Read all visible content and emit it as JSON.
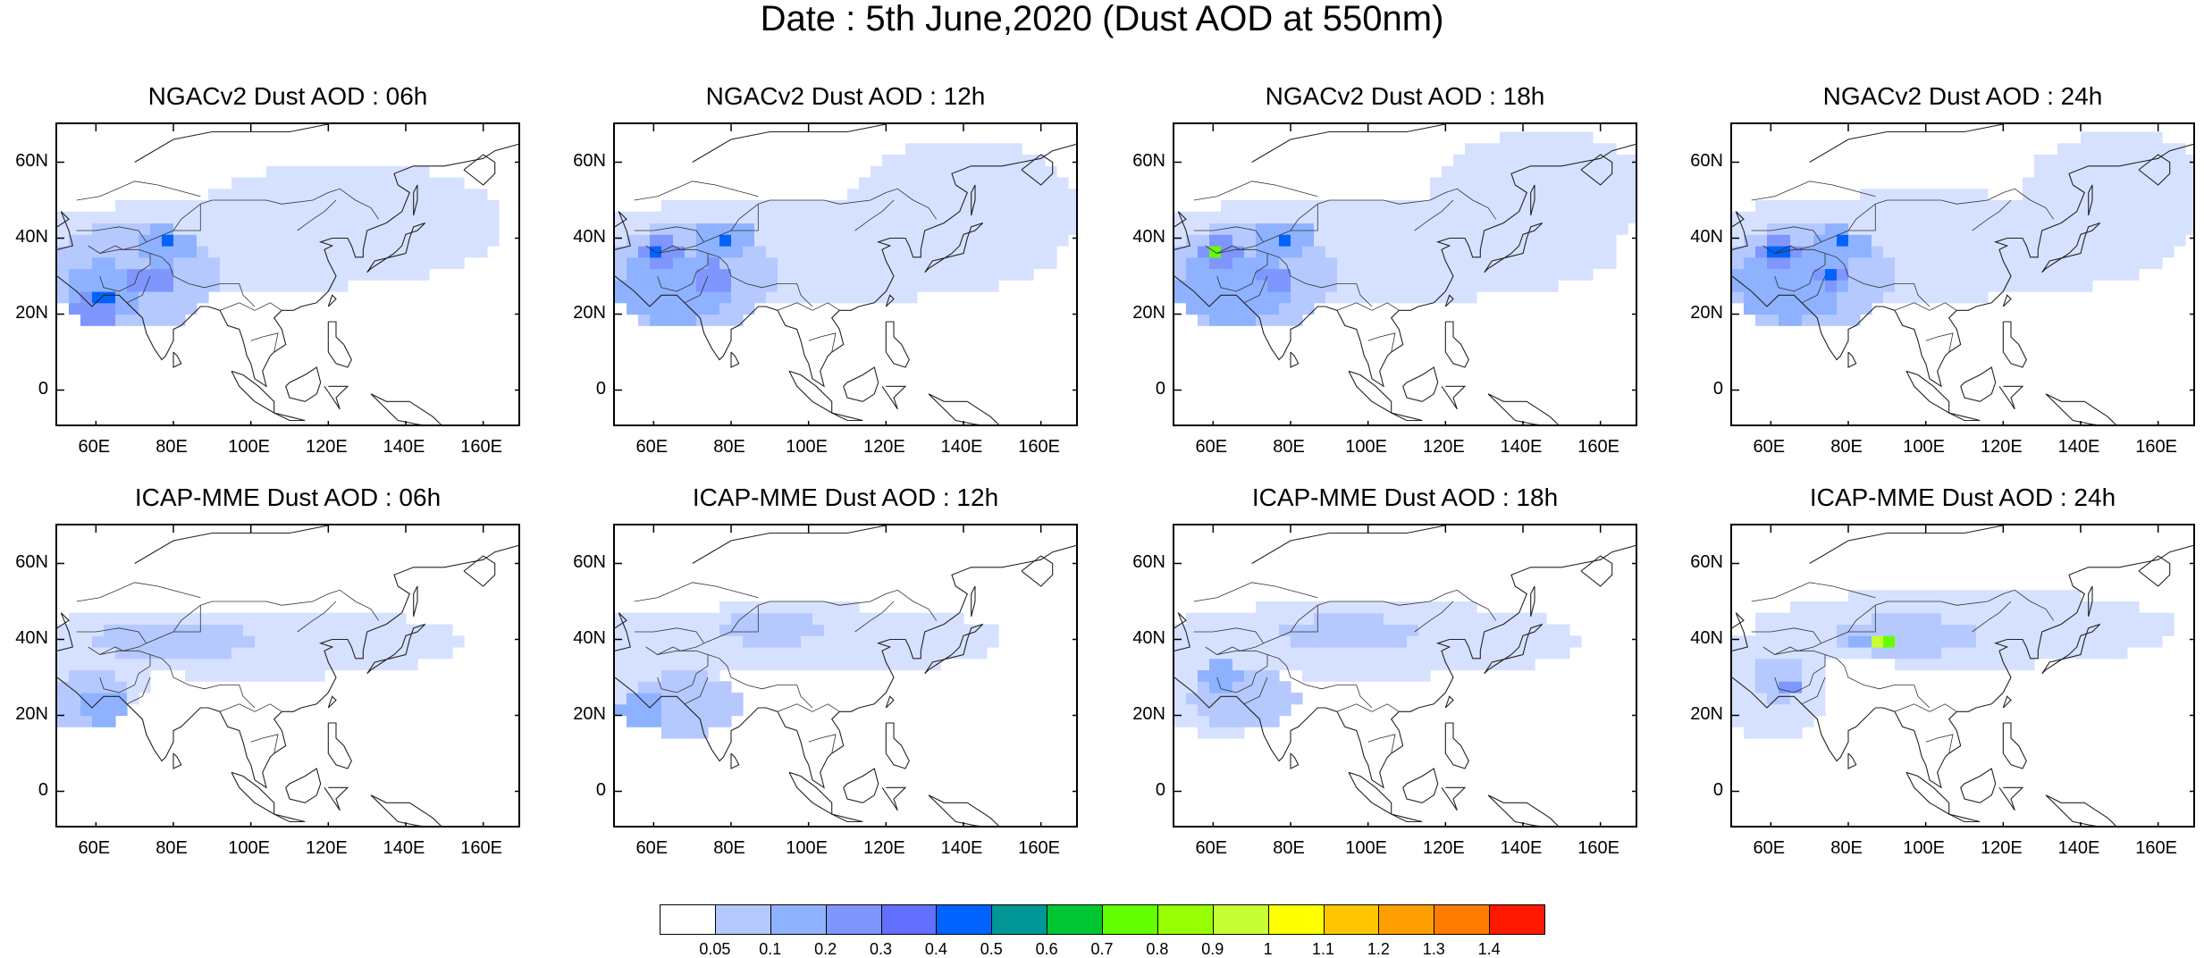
{
  "title": "Date : 5th June,2020 (Dust AOD at 550nm)",
  "y_tick_labels": [
    "60N",
    "40N",
    "20N",
    "0"
  ],
  "x_tick_labels": [
    "60E",
    "80E",
    "100E",
    "120E",
    "140E",
    "160E"
  ],
  "panels": [
    {
      "title": "NGACv2 Dust AOD : 06h",
      "model": "NGACv2",
      "hour": "06h"
    },
    {
      "title": "NGACv2 Dust AOD : 12h",
      "model": "NGACv2",
      "hour": "12h"
    },
    {
      "title": "NGACv2 Dust AOD : 18h",
      "model": "NGACv2",
      "hour": "18h"
    },
    {
      "title": "NGACv2 Dust AOD : 24h",
      "model": "NGACv2",
      "hour": "24h"
    },
    {
      "title": "ICAP-MME Dust AOD : 06h",
      "model": "ICAP-MME",
      "hour": "06h"
    },
    {
      "title": "ICAP-MME Dust AOD : 12h",
      "model": "ICAP-MME",
      "hour": "12h"
    },
    {
      "title": "ICAP-MME Dust AOD : 18h",
      "model": "ICAP-MME",
      "hour": "18h"
    },
    {
      "title": "ICAP-MME Dust AOD : 24h",
      "model": "ICAP-MME",
      "hour": "24h"
    }
  ],
  "colorbar": {
    "labels": [
      "0.05",
      "0.1",
      "0.2",
      "0.3",
      "0.4",
      "0.5",
      "0.6",
      "0.7",
      "0.8",
      "0.9",
      "1",
      "1.1",
      "1.2",
      "1.3",
      "1.4"
    ],
    "colors": [
      "#ffffff",
      "#d6e1ff",
      "#b5c9ff",
      "#8eb2ff",
      "#7f96ff",
      "#6370ff",
      "#0063ff",
      "#009696",
      "#00c633",
      "#63ff00",
      "#96ff00",
      "#c6ff33",
      "#ffff00",
      "#ffc600",
      "#ffa000",
      "#ff7c00",
      "#ff1900"
    ]
  }
}
